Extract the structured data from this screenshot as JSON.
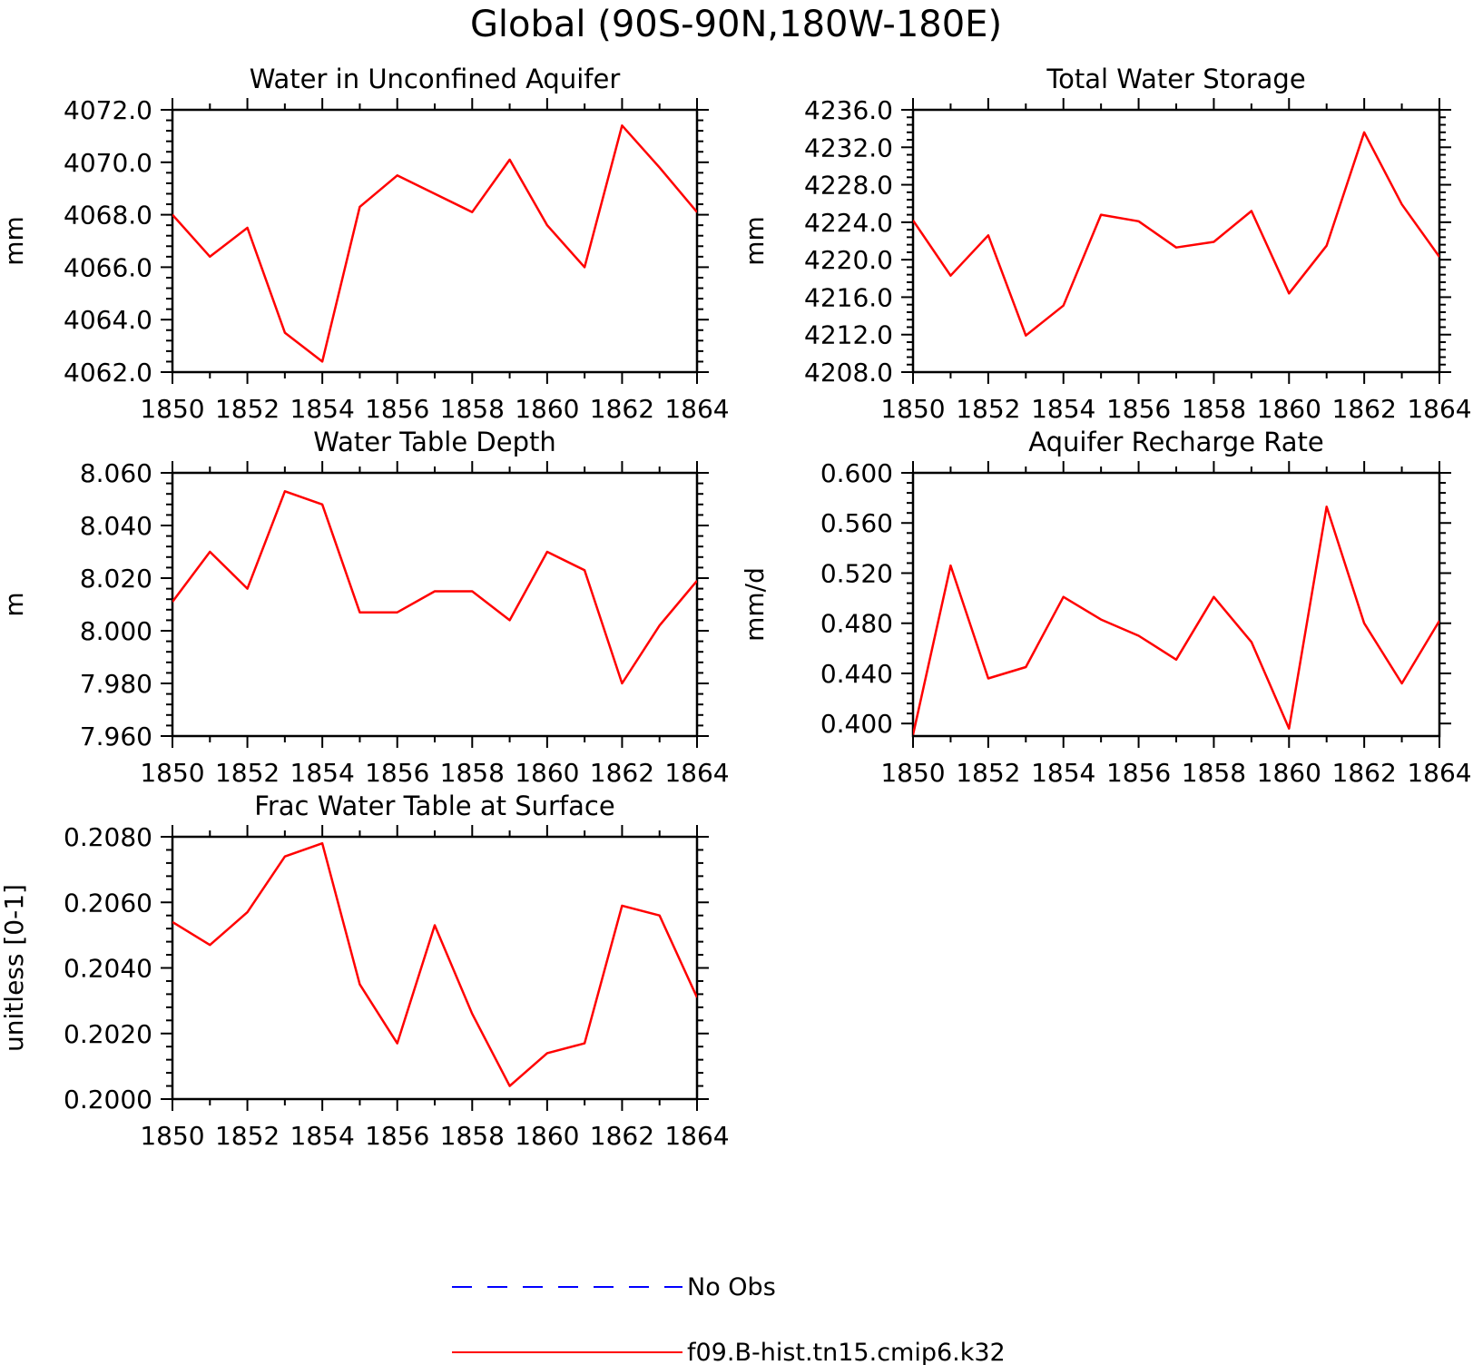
{
  "figure_title": "Global (90S-90N,180W-180E)",
  "legend": {
    "items": [
      {
        "label": "No Obs",
        "color": "#0000ff",
        "style": "dashed"
      },
      {
        "label": "f09.B-hist.tn15.cmip6.k32",
        "color": "#ff0000",
        "style": "solid"
      }
    ]
  },
  "chart_data": [
    {
      "type": "line",
      "title": "Water in Unconfined Aquifer",
      "ylabel": "mm",
      "xlabel": "",
      "ylim": [
        4062.0,
        4072.0
      ],
      "yticks": [
        "4062.0",
        "4064.0",
        "4066.0",
        "4068.0",
        "4070.0",
        "4072.0"
      ],
      "xlim": [
        1850,
        1864
      ],
      "xticks": [
        "1850",
        "1852",
        "1854",
        "1856",
        "1858",
        "1860",
        "1862",
        "1864"
      ],
      "x": [
        1850,
        1851,
        1852,
        1853,
        1854,
        1855,
        1856,
        1857,
        1858,
        1859,
        1860,
        1861,
        1862,
        1863,
        1864
      ],
      "series": [
        {
          "color": "#ff0000",
          "values": [
            4068.0,
            4066.4,
            4067.5,
            4063.5,
            4062.4,
            4068.3,
            4069.5,
            4068.8,
            4068.1,
            4070.1,
            4067.6,
            4066.0,
            4071.4,
            4069.8,
            4068.1
          ]
        }
      ]
    },
    {
      "type": "line",
      "title": "Total Water Storage",
      "ylabel": "mm",
      "xlabel": "",
      "ylim": [
        4208.0,
        4236.0
      ],
      "yticks": [
        "4208.0",
        "4212.0",
        "4216.0",
        "4220.0",
        "4224.0",
        "4228.0",
        "4232.0",
        "4236.0"
      ],
      "xlim": [
        1850,
        1864
      ],
      "xticks": [
        "1850",
        "1852",
        "1854",
        "1856",
        "1858",
        "1860",
        "1862",
        "1864"
      ],
      "x": [
        1850,
        1851,
        1852,
        1853,
        1854,
        1855,
        1856,
        1857,
        1858,
        1859,
        1860,
        1861,
        1862,
        1863,
        1864
      ],
      "series": [
        {
          "color": "#ff0000",
          "values": [
            4224.2,
            4218.3,
            4222.6,
            4211.9,
            4215.1,
            4224.8,
            4224.1,
            4221.3,
            4221.9,
            4225.2,
            4216.4,
            4221.5,
            4233.6,
            4225.9,
            4220.3
          ]
        }
      ]
    },
    {
      "type": "line",
      "title": "Water Table Depth",
      "ylabel": "m",
      "xlabel": "",
      "ylim": [
        7.96,
        8.06
      ],
      "yticks": [
        "7.960",
        "7.980",
        "8.000",
        "8.020",
        "8.040",
        "8.060"
      ],
      "xlim": [
        1850,
        1864
      ],
      "xticks": [
        "1850",
        "1852",
        "1854",
        "1856",
        "1858",
        "1860",
        "1862",
        "1864"
      ],
      "x": [
        1850,
        1851,
        1852,
        1853,
        1854,
        1855,
        1856,
        1857,
        1858,
        1859,
        1860,
        1861,
        1862,
        1863,
        1864
      ],
      "series": [
        {
          "color": "#ff0000",
          "values": [
            8.011,
            8.03,
            8.016,
            8.053,
            8.048,
            8.007,
            8.007,
            8.015,
            8.015,
            8.004,
            8.03,
            8.023,
            7.98,
            8.002,
            8.019
          ]
        }
      ]
    },
    {
      "type": "line",
      "title": "Aquifer Recharge Rate",
      "ylabel": "mm/d",
      "xlabel": "",
      "ylim": [
        0.39,
        0.6
      ],
      "yticks": [
        "0.400",
        "0.440",
        "0.480",
        "0.520",
        "0.560",
        "0.600"
      ],
      "xlim": [
        1850,
        1864
      ],
      "xticks": [
        "1850",
        "1852",
        "1854",
        "1856",
        "1858",
        "1860",
        "1862",
        "1864"
      ],
      "x": [
        1850,
        1851,
        1852,
        1853,
        1854,
        1855,
        1856,
        1857,
        1858,
        1859,
        1860,
        1861,
        1862,
        1863,
        1864
      ],
      "series": [
        {
          "color": "#ff0000",
          "values": [
            0.391,
            0.526,
            0.436,
            0.445,
            0.501,
            0.483,
            0.47,
            0.451,
            0.501,
            0.465,
            0.396,
            0.573,
            0.48,
            0.432,
            0.482
          ]
        }
      ]
    },
    {
      "type": "line",
      "title": "Frac Water Table at Surface",
      "ylabel": "unitless [0-1]",
      "xlabel": "",
      "ylim": [
        0.2,
        0.208
      ],
      "yticks": [
        "0.2000",
        "0.2020",
        "0.2040",
        "0.2060",
        "0.2080"
      ],
      "xlim": [
        1850,
        1864
      ],
      "xticks": [
        "1850",
        "1852",
        "1854",
        "1856",
        "1858",
        "1860",
        "1862",
        "1864"
      ],
      "x": [
        1850,
        1851,
        1852,
        1853,
        1854,
        1855,
        1856,
        1857,
        1858,
        1859,
        1860,
        1861,
        1862,
        1863,
        1864
      ],
      "series": [
        {
          "color": "#ff0000",
          "values": [
            0.2054,
            0.2047,
            0.2057,
            0.2074,
            0.2078,
            0.2035,
            0.2017,
            0.2053,
            0.2026,
            0.2004,
            0.2014,
            0.2017,
            0.2059,
            0.2056,
            0.2031
          ]
        }
      ]
    }
  ]
}
